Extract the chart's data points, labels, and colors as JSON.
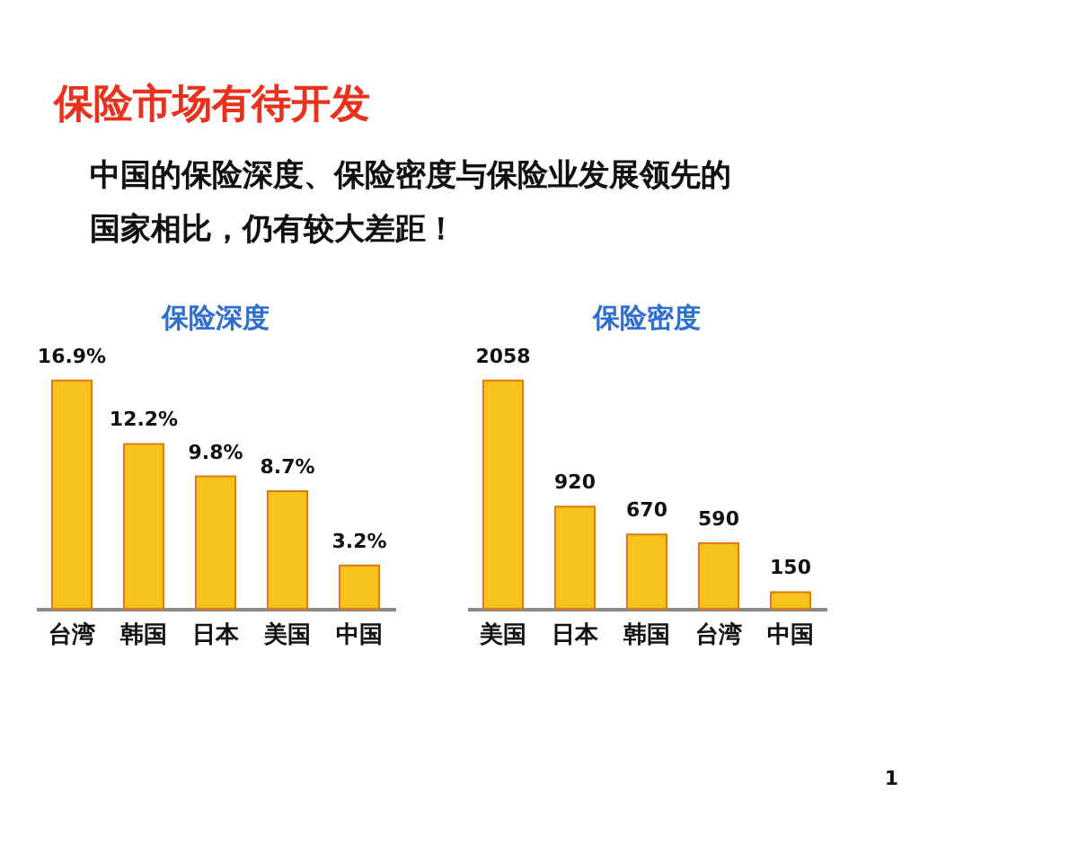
{
  "chart_data": [
    {
      "type": "other",
      "title": "保险市场有待开发",
      "subtitle": "中国的保险深度、保险密度与保险业发展领先的国家相比，仍有较大差距！"
    },
    {
      "type": "bar",
      "title": "保险深度",
      "categories": [
        "台湾",
        "韩国",
        "日本",
        "美国",
        "中国"
      ],
      "values": [
        16.9,
        12.2,
        9.8,
        8.7,
        3.2
      ],
      "value_labels": [
        "16.9%",
        "12.2%",
        "9.8%",
        "8.7%",
        "3.2%"
      ],
      "color": "#f7c21c"
    },
    {
      "type": "bar",
      "title": "保险密度",
      "categories": [
        "美国",
        "日本",
        "韩国",
        "台湾",
        "中国"
      ],
      "values": [
        2058,
        920,
        670,
        590,
        150
      ],
      "data_labels": true,
      "color": "#f7c21c",
      "annotations": [
        "1"
      ]
    }
  ]
}
